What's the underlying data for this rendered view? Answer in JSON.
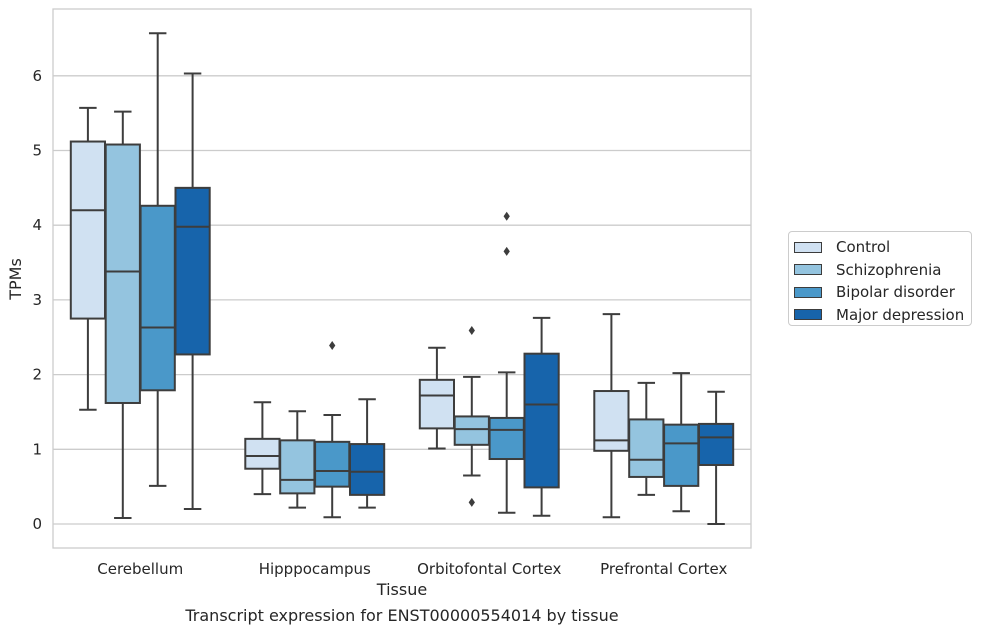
{
  "chart_data": {
    "type": "box",
    "title": "Transcript expression for ENST00000554014 by tissue",
    "xlabel": "Tissue",
    "ylabel": "TPMs",
    "ylim": [
      -0.32,
      6.9
    ],
    "yticks": [
      0,
      1,
      2,
      3,
      4,
      5,
      6
    ],
    "grid": true,
    "legend_position": "right",
    "categories": [
      "Cerebellum",
      "Hipppocampus",
      "Orbitofontal Cortex",
      "Prefrontal Cortex"
    ],
    "series": [
      {
        "name": "Control",
        "color": "#d0e1f2",
        "boxes": [
          {
            "whislo": 1.53,
            "q1": 2.75,
            "med": 4.2,
            "q3": 5.12,
            "whishi": 5.57,
            "fliers": []
          },
          {
            "whislo": 0.4,
            "q1": 0.74,
            "med": 0.91,
            "q3": 1.14,
            "whishi": 1.63,
            "fliers": []
          },
          {
            "whislo": 1.01,
            "q1": 1.28,
            "med": 1.72,
            "q3": 1.93,
            "whishi": 2.36,
            "fliers": []
          },
          {
            "whislo": 0.09,
            "q1": 0.98,
            "med": 1.12,
            "q3": 1.78,
            "whishi": 2.81,
            "fliers": []
          }
        ]
      },
      {
        "name": "Schizophrenia",
        "color": "#94c4df",
        "boxes": [
          {
            "whislo": 0.08,
            "q1": 1.62,
            "med": 3.38,
            "q3": 5.08,
            "whishi": 5.52,
            "fliers": []
          },
          {
            "whislo": 0.22,
            "q1": 0.41,
            "med": 0.59,
            "q3": 1.12,
            "whishi": 1.51,
            "fliers": []
          },
          {
            "whislo": 0.65,
            "q1": 1.06,
            "med": 1.27,
            "q3": 1.44,
            "whishi": 1.97,
            "fliers": [
              2.59,
              0.29
            ]
          },
          {
            "whislo": 0.39,
            "q1": 0.63,
            "med": 0.86,
            "q3": 1.4,
            "whishi": 1.89,
            "fliers": []
          }
        ]
      },
      {
        "name": "Bipolar disorder",
        "color": "#4a98c9",
        "boxes": [
          {
            "whislo": 0.51,
            "q1": 1.79,
            "med": 2.63,
            "q3": 4.26,
            "whishi": 6.57,
            "fliers": []
          },
          {
            "whislo": 0.09,
            "q1": 0.5,
            "med": 0.71,
            "q3": 1.1,
            "whishi": 1.46,
            "fliers": [
              2.39
            ]
          },
          {
            "whislo": 0.15,
            "q1": 0.87,
            "med": 1.26,
            "q3": 1.42,
            "whishi": 2.03,
            "fliers": [
              4.12,
              3.65
            ]
          },
          {
            "whislo": 0.17,
            "q1": 0.51,
            "med": 1.08,
            "q3": 1.33,
            "whishi": 2.02,
            "fliers": []
          }
        ]
      },
      {
        "name": "Major depression",
        "color": "#1764ab",
        "boxes": [
          {
            "whislo": 0.2,
            "q1": 2.27,
            "med": 3.98,
            "q3": 4.5,
            "whishi": 6.03,
            "fliers": []
          },
          {
            "whislo": 0.22,
            "q1": 0.39,
            "med": 0.7,
            "q3": 1.07,
            "whishi": 1.67,
            "fliers": []
          },
          {
            "whislo": 0.11,
            "q1": 0.49,
            "med": 1.6,
            "q3": 2.28,
            "whishi": 2.76,
            "fliers": []
          },
          {
            "whislo": 0.0,
            "q1": 0.79,
            "med": 1.16,
            "q3": 1.34,
            "whishi": 1.77,
            "fliers": []
          }
        ]
      }
    ]
  }
}
